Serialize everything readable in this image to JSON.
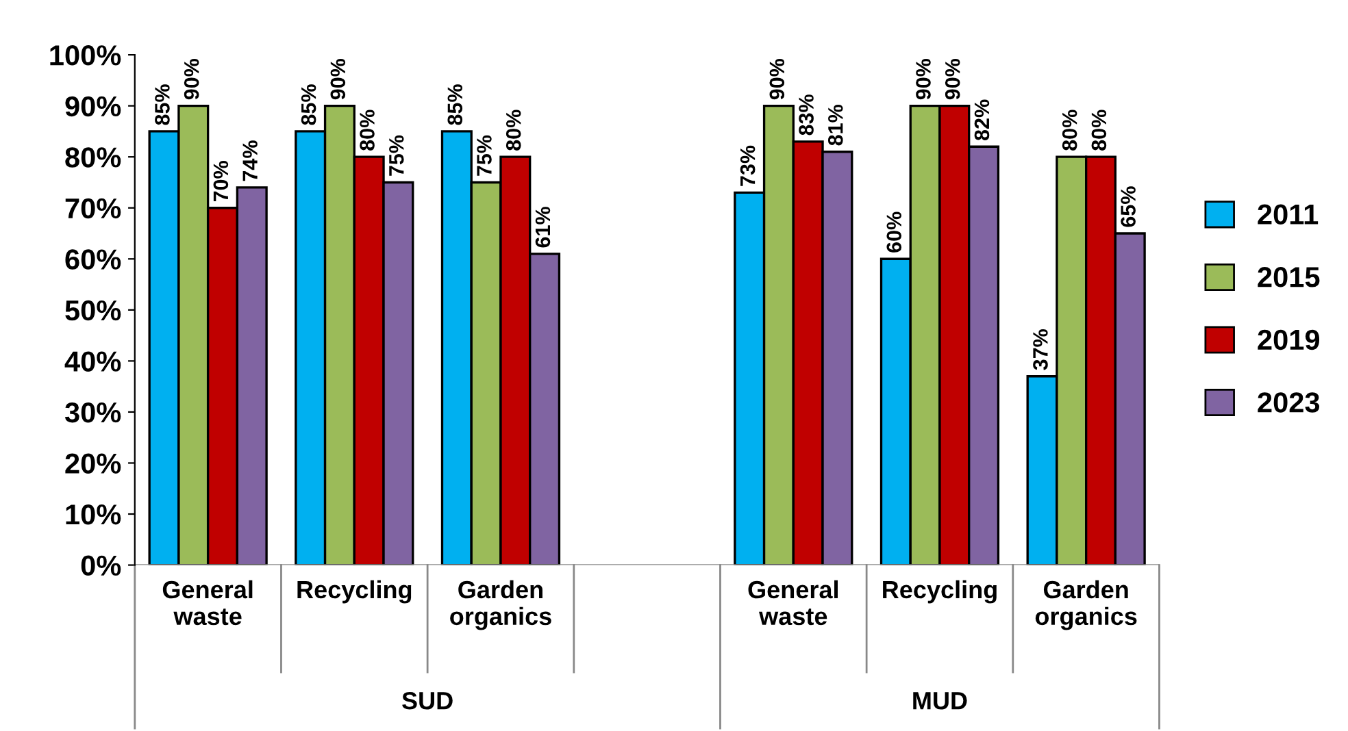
{
  "chart_data": {
    "type": "bar",
    "categories": [
      "General waste",
      "Recycling",
      "Garden organics",
      null,
      "General waste",
      "Recycling",
      "Garden organics"
    ],
    "series": [
      {
        "name": "2011",
        "color": "#00b0f0",
        "values": [
          85,
          85,
          85,
          null,
          73,
          60,
          37
        ],
        "value_labels": [
          "85%",
          "85%",
          "85%",
          null,
          "73%",
          "60%",
          "37%"
        ]
      },
      {
        "name": "2015",
        "color": "#9bbb59",
        "values": [
          90,
          90,
          75,
          null,
          90,
          90,
          80
        ],
        "value_labels": [
          "90%",
          "90%",
          "75%",
          null,
          "90%",
          "90%",
          "80%"
        ]
      },
      {
        "name": "2019",
        "color": "#c00000",
        "values": [
          70,
          80,
          80,
          null,
          83,
          90,
          80
        ],
        "value_labels": [
          "70%",
          "80%",
          "80%",
          null,
          "83%",
          "90%",
          "80%"
        ]
      },
      {
        "name": "2023",
        "color": "#8064a2",
        "values": [
          74,
          75,
          61,
          null,
          81,
          82,
          65
        ],
        "value_labels": [
          "74%",
          "75%",
          "61%",
          null,
          "81%",
          "82%",
          "65%"
        ]
      }
    ],
    "ylim": [
      0,
      100
    ],
    "yticks": [
      {
        "value": 0,
        "label": "0%"
      },
      {
        "value": 10,
        "label": "10%"
      },
      {
        "value": 20,
        "label": "20%"
      },
      {
        "value": 30,
        "label": "30%"
      },
      {
        "value": 40,
        "label": "40%"
      },
      {
        "value": 50,
        "label": "50%"
      },
      {
        "value": 60,
        "label": "60%"
      },
      {
        "value": 70,
        "label": "70%"
      },
      {
        "value": 80,
        "label": "80%"
      },
      {
        "value": 90,
        "label": "90%"
      },
      {
        "value": 100,
        "label": "100%"
      }
    ],
    "annotations": [
      "SUD",
      "MUD"
    ],
    "grid": false,
    "legend": "right"
  }
}
